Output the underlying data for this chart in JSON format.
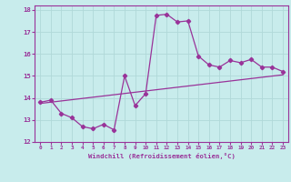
{
  "xlabel": "Windchill (Refroidissement éolien,°C)",
  "background_color": "#c8ecec",
  "grid_color": "#b0d8d8",
  "line_color": "#993399",
  "xlim": [
    -0.5,
    23.5
  ],
  "ylim": [
    12,
    18.2
  ],
  "xticks": [
    0,
    1,
    2,
    3,
    4,
    5,
    6,
    7,
    8,
    9,
    10,
    11,
    12,
    13,
    14,
    15,
    16,
    17,
    18,
    19,
    20,
    21,
    22,
    23
  ],
  "yticks": [
    12,
    13,
    14,
    15,
    16,
    17,
    18
  ],
  "main_x": [
    0,
    1,
    2,
    3,
    4,
    5,
    6,
    7,
    8,
    9,
    10,
    11,
    12,
    13,
    14,
    15,
    16,
    17,
    18,
    19,
    20,
    21,
    22,
    23
  ],
  "main_y": [
    13.8,
    13.9,
    13.3,
    13.1,
    12.7,
    12.6,
    12.8,
    12.55,
    15.0,
    13.65,
    14.2,
    17.75,
    17.8,
    17.45,
    17.5,
    15.9,
    15.5,
    15.4,
    15.7,
    15.6,
    15.75,
    15.4,
    15.4,
    15.2
  ],
  "trend_x": [
    0,
    23
  ],
  "trend_y": [
    13.75,
    15.05
  ]
}
